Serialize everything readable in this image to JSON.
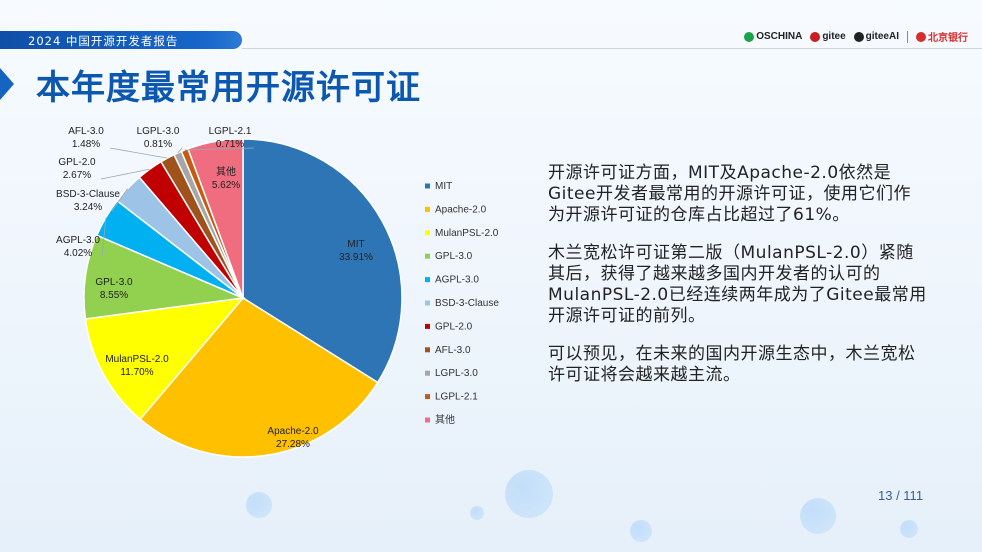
{
  "header": {
    "report_label": "2024 中国开源开发者报告",
    "logos": [
      {
        "name": "OSCHINA",
        "color": "#1aa34a"
      },
      {
        "name": "gitee",
        "color": "#c71d23"
      },
      {
        "name": "giteeAI",
        "color": "#222222"
      },
      {
        "name": "北京银行",
        "color": "#d62d2d"
      }
    ]
  },
  "page_title": "本年度最常用开源许可证",
  "body": {
    "p1": "开源许可证方面，MIT及Apache-2.0依然是Gitee开发者最常用的开源许可证，使用它们作为开源许可证的仓库占比超过了61%。",
    "p2": "木兰宽松许可证第二版（MulanPSL-2.0）紧随其后，获得了越来越多国内开发者的认可的MulanPSL-2.0已经连续两年成为了Gitee最常用开源许可证的前列。",
    "p3": "可以预见，在未来的国内开源生态中，木兰宽松许可证将会越来越主流。"
  },
  "page_number": "13 / 111",
  "chart_data": {
    "type": "pie",
    "title": "",
    "legend_position": "right",
    "series": [
      {
        "name": "MIT",
        "value": 33.91,
        "label": "33.91%",
        "color": "#2e75b6"
      },
      {
        "name": "Apache-2.0",
        "value": 27.28,
        "label": "27.28%",
        "color": "#ffc000"
      },
      {
        "name": "MulanPSL-2.0",
        "value": 11.7,
        "label": "11.70%",
        "color": "#ffff00"
      },
      {
        "name": "GPL-3.0",
        "value": 8.55,
        "label": "8.55%",
        "color": "#92d050"
      },
      {
        "name": "AGPL-3.0",
        "value": 4.02,
        "label": "4.02%",
        "color": "#00b0f0"
      },
      {
        "name": "BSD-3-Clause",
        "value": 3.24,
        "label": "3.24%",
        "color": "#9dc3e6"
      },
      {
        "name": "GPL-2.0",
        "value": 2.67,
        "label": "2.67%",
        "color": "#c00000"
      },
      {
        "name": "AFL-3.0",
        "value": 1.48,
        "label": "1.48%",
        "color": "#a0521d"
      },
      {
        "name": "LGPL-3.0",
        "value": 0.81,
        "label": "0.81%",
        "color": "#a6a6a6"
      },
      {
        "name": "LGPL-2.1",
        "value": 0.71,
        "label": "0.71%",
        "color": "#c55a11"
      },
      {
        "name": "其他",
        "value": 5.62,
        "label": "5.62%",
        "color": "#f06c7f"
      }
    ]
  }
}
